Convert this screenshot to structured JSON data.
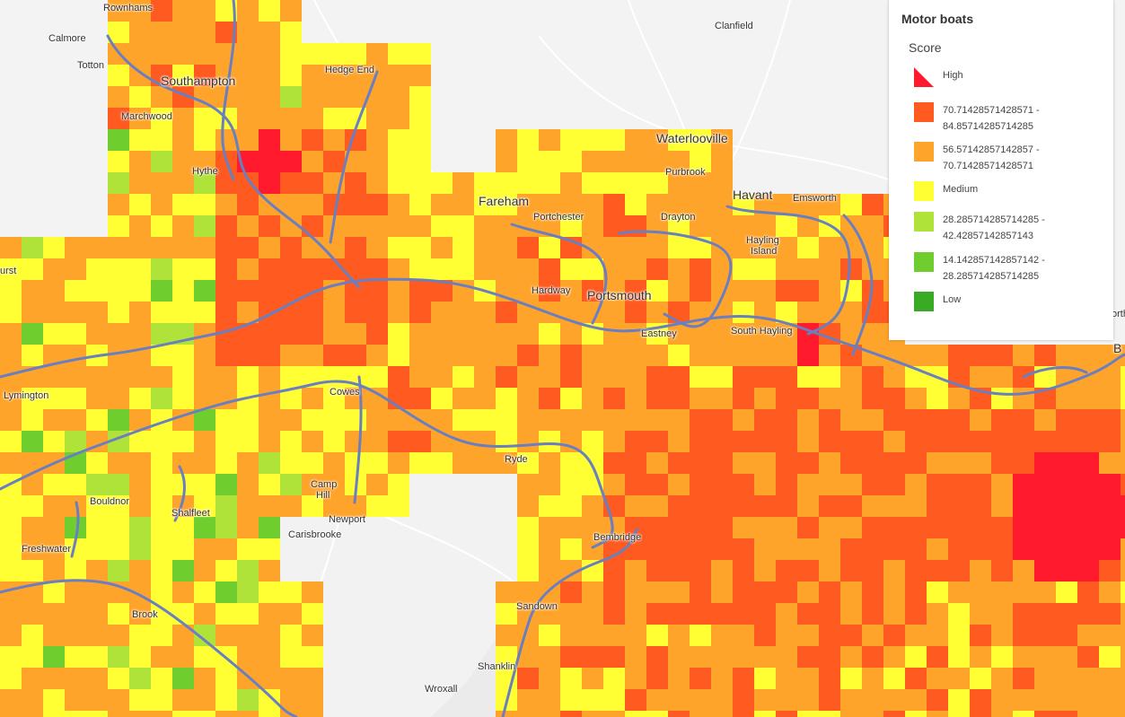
{
  "legend": {
    "title": "Motor boats",
    "field": "Score",
    "items": [
      {
        "label_lines": [
          "High"
        ],
        "color": "#ff1a2e"
      },
      {
        "label_lines": [
          "70.71428571428571 -",
          "84.85714285714285"
        ],
        "color": "#ff5a1f"
      },
      {
        "label_lines": [
          "56.57142857142857 -",
          "70.71428571428571"
        ],
        "color": "#ffa42a"
      },
      {
        "label_lines": [
          "Medium"
        ],
        "color": "#ffff33"
      },
      {
        "label_lines": [
          "28.285714285714285 -",
          "42.42857142857143"
        ],
        "color": "#b0e33a"
      },
      {
        "label_lines": [
          "14.142857142857142 -",
          "28.285714285714285"
        ],
        "color": "#6fce2e"
      },
      {
        "label_lines": [
          "Low"
        ],
        "color": "#3aaa24"
      }
    ]
  },
  "places": [
    {
      "name": "Rownhams"
    },
    {
      "name": "Calmore"
    },
    {
      "name": "Totton"
    },
    {
      "name": "Southampton"
    },
    {
      "name": "Marchwood"
    },
    {
      "name": "Hedge End"
    },
    {
      "name": "Hythe"
    },
    {
      "name": "Clanfield"
    },
    {
      "name": "Waterlooville"
    },
    {
      "name": "Purbrook"
    },
    {
      "name": "Fareham"
    },
    {
      "name": "Havant"
    },
    {
      "name": "Emsworth"
    },
    {
      "name": "Portchester"
    },
    {
      "name": "Drayton"
    },
    {
      "name": "Hayling"
    },
    {
      "name": "Island"
    },
    {
      "name": "Hardway"
    },
    {
      "name": "Portsmouth"
    },
    {
      "name": "Eastney"
    },
    {
      "name": "South Hayling"
    },
    {
      "name": "urst"
    },
    {
      "name": "Lymington"
    },
    {
      "name": "Cowes"
    },
    {
      "name": "Ryde"
    },
    {
      "name": "Camp"
    },
    {
      "name": "Hill"
    },
    {
      "name": "Bouldnor"
    },
    {
      "name": "Shalfleet"
    },
    {
      "name": "Newport"
    },
    {
      "name": "Carisbrooke"
    },
    {
      "name": "Freshwater"
    },
    {
      "name": "Bembridge"
    },
    {
      "name": "Sandown"
    },
    {
      "name": "Brook"
    },
    {
      "name": "Shanklin"
    },
    {
      "name": "Wroxall"
    },
    {
      "name": "orth"
    },
    {
      "name": "B"
    }
  ]
}
